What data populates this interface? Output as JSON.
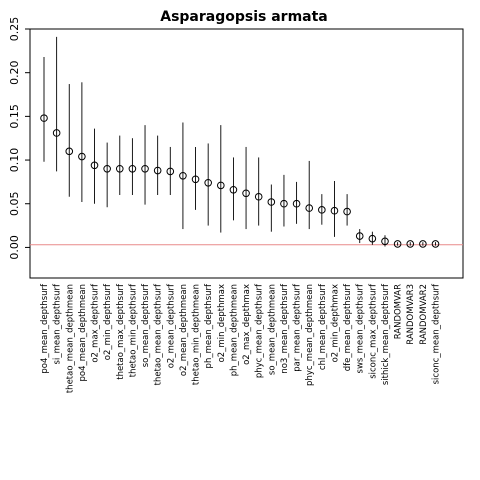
{
  "chart_data": {
    "type": "scatter",
    "title": "Asparagopsis armata",
    "xlabel": "",
    "ylabel": "",
    "ylim": [
      -0.035,
      0.25
    ],
    "yticks": [
      0.0,
      0.05,
      0.1,
      0.15,
      0.2,
      0.25
    ],
    "ytick_labels": [
      "0.00",
      "0.05",
      "0.10",
      "0.15",
      "0.20",
      "0.25"
    ],
    "reference_line": {
      "y": 0.003,
      "color": "#e88a8a"
    },
    "categories": [
      "po4_mean_depthsurf",
      "si_mean_depthsurf",
      "thetao_mean_depthmean",
      "po4_mean_depthmean",
      "o2_max_depthsurf",
      "o2_min_depthsurf",
      "thetao_max_depthsurf",
      "thetao_min_depthsurf",
      "so_mean_depthsurf",
      "thetao_mean_depthsurf",
      "o2_mean_depthsurf",
      "o2_mean_depthmean",
      "thetao_min_depthmean",
      "ph_mean_depthsurf",
      "o2_min_depthmax",
      "ph_mean_depthmean",
      "o2_max_depthmax",
      "phyc_mean_depthsurf",
      "so_mean_depthmean",
      "no3_mean_depthsurf",
      "par_mean_depthsurf",
      "phyc_mean_depthmean",
      "chl_mean_depthsurf",
      "o2_min_depthmax",
      "dfe_mean_depthsurf",
      "sws_mean_depthsurf",
      "siconc_max_depthsurf",
      "sithick_mean_depthsurf",
      "RANDOMVAR",
      "RANDOMVAR3",
      "RANDOMVAR2",
      "siconc_mean_depthsurf"
    ],
    "series": [
      {
        "values": [
          0.148,
          0.131,
          0.11,
          0.104,
          0.094,
          0.09,
          0.09,
          0.09,
          0.09,
          0.088,
          0.087,
          0.082,
          0.078,
          0.074,
          0.071,
          0.066,
          0.062,
          0.058,
          0.052,
          0.05,
          0.05,
          0.045,
          0.043,
          0.042,
          0.041,
          0.013,
          0.01,
          0.007,
          0.004,
          0.004,
          0.004,
          0.004
        ],
        "lower": [
          0.098,
          0.087,
          0.058,
          0.052,
          0.05,
          0.046,
          0.06,
          0.06,
          0.049,
          0.06,
          0.06,
          0.021,
          0.043,
          0.025,
          0.017,
          0.031,
          0.021,
          0.025,
          0.018,
          0.024,
          0.027,
          0.021,
          0.026,
          0.012,
          0.025,
          0.005,
          0.003,
          0.001,
          0.002,
          0.002,
          0.002,
          0.002
        ],
        "upper": [
          0.218,
          0.241,
          0.187,
          0.189,
          0.136,
          0.12,
          0.128,
          0.125,
          0.14,
          0.128,
          0.115,
          0.143,
          0.115,
          0.119,
          0.14,
          0.103,
          0.115,
          0.103,
          0.072,
          0.083,
          0.075,
          0.099,
          0.061,
          0.076,
          0.061,
          0.021,
          0.018,
          0.014,
          0.006,
          0.006,
          0.006,
          0.006
        ]
      }
    ],
    "grid": false,
    "legend": "none"
  }
}
